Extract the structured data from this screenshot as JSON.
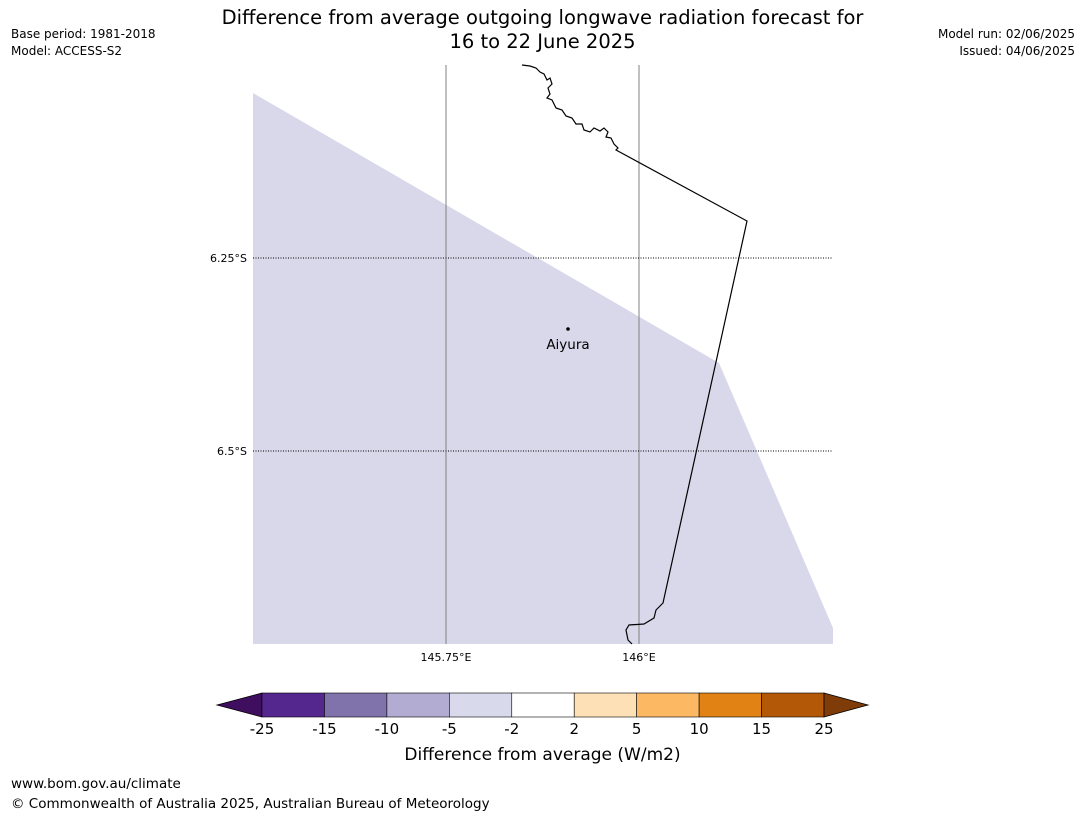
{
  "header": {
    "title_line1": "Difference from average outgoing longwave radiation forecast for",
    "title_line2": "16 to 22 June 2025",
    "base_period": "Base period: 1981-2018",
    "model": "Model: ACCESS-S2",
    "model_run": "Model run: 02/06/2025",
    "issued": "Issued: 04/06/2025"
  },
  "map": {
    "lat_labels": [
      "6.25°S",
      "6.5°S"
    ],
    "lon_labels": [
      "145.75°E",
      "146°E"
    ],
    "place_name": "Aiyura",
    "fill_color": "#d8d8ea",
    "coast_color": "#000000",
    "grid_color": "#808080"
  },
  "colorbar": {
    "ticks": [
      "-25",
      "-15",
      "-10",
      "-5",
      "-2",
      "2",
      "5",
      "10",
      "15",
      "25"
    ],
    "colors": [
      "#3f0e5e",
      "#54278f",
      "#8073ac",
      "#b2abd2",
      "#d8daeb",
      "#ffffff",
      "#fee0b6",
      "#fdb863",
      "#e08214",
      "#b35806",
      "#7f3b08"
    ],
    "label": "Difference from average (W/m2)"
  },
  "footer": {
    "url": "www.bom.gov.au/climate",
    "copyright": "© Commonwealth of Australia 2025, Australian Bureau of Meteorology"
  }
}
